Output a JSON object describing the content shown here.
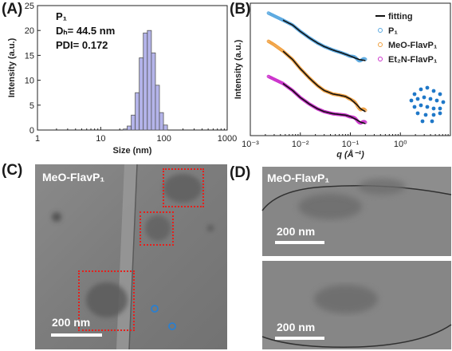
{
  "panels": {
    "a": {
      "letter": "(A)"
    },
    "b": {
      "letter": "(B)"
    },
    "c": {
      "letter": "(C)",
      "sample_label": "MeO-FlavP₁",
      "scale_label": "200 nm"
    },
    "d": {
      "letter": "(D)",
      "sample_label": "MeO-FlavP₁",
      "scale_label_top": "200 nm",
      "scale_label_bottom": "200 nm"
    }
  },
  "chart_data": [
    {
      "type": "bar",
      "panel": "A",
      "xlabel": "Size (nm)",
      "ylabel": "Intensity (a.u.)",
      "xscale": "log",
      "xlim": [
        1,
        1000
      ],
      "ylim": [
        0,
        25
      ],
      "xticks": [
        "1",
        "10",
        "100",
        "1000"
      ],
      "yticks": [
        "0",
        "5",
        "10",
        "15",
        "20",
        "25"
      ],
      "annotation": {
        "sample": "P₁",
        "dh": "Dₕ= 44.5 nm",
        "pdi": "PDI= 0.172"
      },
      "bar_color": "#b4b4ea",
      "bins": [
        {
          "x": 24.4,
          "y": 0.2
        },
        {
          "x": 28.2,
          "y": 0.8
        },
        {
          "x": 32.7,
          "y": 3.0
        },
        {
          "x": 37.8,
          "y": 7.5
        },
        {
          "x": 43.8,
          "y": 14.5
        },
        {
          "x": 50.7,
          "y": 19.5
        },
        {
          "x": 58.8,
          "y": 20.0
        },
        {
          "x": 68.1,
          "y": 15.5
        },
        {
          "x": 78.8,
          "y": 9.0
        },
        {
          "x": 91.3,
          "y": 3.5
        },
        {
          "x": 105.7,
          "y": 1.0
        }
      ]
    },
    {
      "type": "scatter",
      "panel": "B",
      "xlabel": "q (Å⁻¹)",
      "ylabel": "Intensity (a.u.)",
      "xscale": "log",
      "xlim": [
        0.001,
        10
      ],
      "xticks": [
        "10⁻³",
        "10⁻²",
        "10⁻¹",
        "10⁰"
      ],
      "legend_position": "right",
      "legend": [
        {
          "label": "fitting",
          "marker": "line",
          "color": "#111111"
        },
        {
          "label": "P₁",
          "marker": "circle",
          "color": "#5ba9e0"
        },
        {
          "label": "MeO-FlavP₁",
          "marker": "circle",
          "color": "#f0a040"
        },
        {
          "label": "Et₂N-FlavP₁",
          "marker": "circle",
          "color": "#cc33cc"
        }
      ],
      "series": [
        {
          "name": "P₁",
          "color": "#5ba9e0",
          "log_intensity": [
            [
              0.0023,
              3.3
            ],
            [
              0.003,
              3.22
            ],
            [
              0.0045,
              3.1
            ],
            [
              0.007,
              2.96
            ],
            [
              0.01,
              2.78
            ],
            [
              0.015,
              2.6
            ],
            [
              0.022,
              2.45
            ],
            [
              0.03,
              2.35
            ],
            [
              0.045,
              2.25
            ],
            [
              0.07,
              2.16
            ],
            [
              0.1,
              2.08
            ],
            [
              0.15,
              1.98
            ],
            [
              0.2,
              1.95
            ]
          ]
        },
        {
          "name": "MeO-FlavP₁",
          "color": "#f0a040",
          "log_intensity": [
            [
              0.0023,
              2.5
            ],
            [
              0.003,
              2.4
            ],
            [
              0.0045,
              2.22
            ],
            [
              0.007,
              1.98
            ],
            [
              0.01,
              1.72
            ],
            [
              0.015,
              1.46
            ],
            [
              0.022,
              1.24
            ],
            [
              0.03,
              1.1
            ],
            [
              0.045,
              1.0
            ],
            [
              0.06,
              0.97
            ],
            [
              0.08,
              0.93
            ],
            [
              0.1,
              0.86
            ],
            [
              0.13,
              0.72
            ],
            [
              0.16,
              0.58
            ],
            [
              0.2,
              0.5
            ]
          ]
        },
        {
          "name": "Et₂N-FlavP₁",
          "color": "#cc33cc",
          "log_intensity": [
            [
              0.0023,
              1.5
            ],
            [
              0.003,
              1.42
            ],
            [
              0.0045,
              1.3
            ],
            [
              0.007,
              1.1
            ],
            [
              0.01,
              0.9
            ],
            [
              0.015,
              0.72
            ],
            [
              0.022,
              0.58
            ],
            [
              0.03,
              0.5
            ],
            [
              0.045,
              0.44
            ],
            [
              0.06,
              0.42
            ],
            [
              0.08,
              0.4
            ],
            [
              0.1,
              0.36
            ],
            [
              0.13,
              0.28
            ],
            [
              0.16,
              0.2
            ],
            [
              0.2,
              0.16
            ]
          ]
        }
      ],
      "fitting": {
        "name": "fitting",
        "color": "#111111",
        "qmin": 0.0045,
        "qmax": 0.2
      }
    }
  ]
}
